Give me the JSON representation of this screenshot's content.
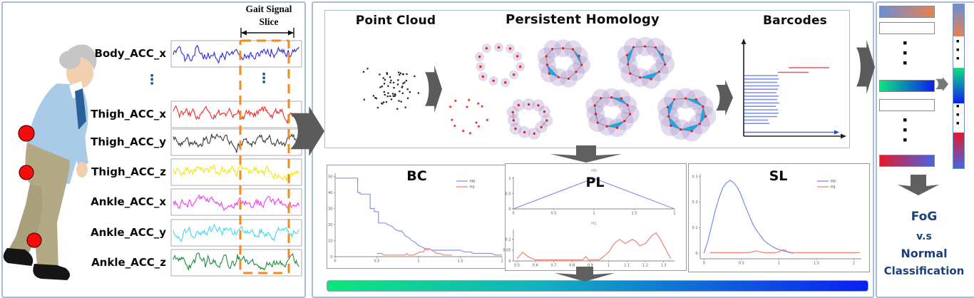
{
  "left_panel": {
    "slice_label": [
      "Gait Signal",
      "Slice"
    ],
    "ellipsis": "⋮",
    "slice_box_color": "#f28a1e",
    "signals": [
      {
        "label": "Body_ACC_x",
        "color": "#2b2bd6"
      },
      {
        "label": "Thigh_ACC_x",
        "color": "#ef2d2d"
      },
      {
        "label": "Thigh_ACC_y",
        "color": "#3a3a3a"
      },
      {
        "label": "Thigh_ACC_z",
        "color": "#f2e713"
      },
      {
        "label": "Ankle_ACC_x",
        "color": "#f23cf2"
      },
      {
        "label": "Ankle_ACC_y",
        "color": "#3fd9ec"
      },
      {
        "label": "Ankle_ACC_z",
        "color": "#1f8b3f"
      }
    ]
  },
  "pipeline": {
    "titles": {
      "point_cloud": "Point Cloud",
      "persistent_homology": "Persistent Homology",
      "barcodes": "Barcodes"
    },
    "h0_color": "#8093e8",
    "h1_color": "#e05a6e"
  },
  "chart_data": [
    {
      "id": "BC",
      "type": "line",
      "title": "BC",
      "xlim": [
        0,
        2
      ],
      "ylim": [
        0,
        52
      ],
      "xticks": [
        0,
        0.5,
        1,
        1.5,
        2
      ],
      "yticks": [
        0,
        10,
        20,
        30,
        40,
        50
      ],
      "legend_position": "top-right",
      "series": [
        {
          "name": "H0",
          "color": "#8892e6",
          "points": [
            [
              0,
              49
            ],
            [
              0.27,
              49
            ],
            [
              0.27,
              40
            ],
            [
              0.3,
              40
            ],
            [
              0.3,
              39
            ],
            [
              0.42,
              39
            ],
            [
              0.42,
              30
            ],
            [
              0.47,
              30
            ],
            [
              0.47,
              28
            ],
            [
              0.52,
              28
            ],
            [
              0.52,
              21
            ],
            [
              0.6,
              21
            ],
            [
              0.63,
              20
            ],
            [
              0.68,
              19
            ],
            [
              0.72,
              17
            ],
            [
              0.76,
              16
            ],
            [
              0.8,
              16
            ],
            [
              0.84,
              13
            ],
            [
              0.88,
              12
            ],
            [
              0.92,
              10
            ],
            [
              0.96,
              9
            ],
            [
              1,
              7
            ],
            [
              1.04,
              6
            ],
            [
              1.08,
              5
            ],
            [
              1.12,
              5
            ],
            [
              1.16,
              4
            ],
            [
              1.3,
              4
            ],
            [
              1.5,
              4
            ],
            [
              1.55,
              3
            ],
            [
              1.62,
              3
            ],
            [
              1.66,
              2
            ],
            [
              1.88,
              2
            ],
            [
              1.92,
              1
            ],
            [
              2,
              1
            ]
          ]
        },
        {
          "name": "H1",
          "color": "#f08272",
          "points": [
            [
              0.5,
              2
            ],
            [
              0.56,
              2
            ],
            [
              0.58,
              1
            ],
            [
              0.84,
              1
            ],
            [
              0.86,
              2
            ],
            [
              0.88,
              1
            ],
            [
              0.94,
              1
            ],
            [
              0.98,
              2
            ],
            [
              1.02,
              3
            ],
            [
              1.06,
              3
            ],
            [
              1.08,
              5
            ],
            [
              1.1,
              4
            ],
            [
              1.13,
              5
            ],
            [
              1.16,
              4
            ],
            [
              1.19,
              3
            ],
            [
              1.22,
              2
            ],
            [
              1.26,
              2
            ],
            [
              1.3,
              1
            ],
            [
              1.4,
              1
            ]
          ]
        }
      ]
    },
    {
      "id": "PL",
      "type": "line",
      "title": "PL",
      "subplots": [
        {
          "name": "H0",
          "color": "#8892e6",
          "xlim": [
            0,
            2
          ],
          "ylim": [
            0,
            1.05
          ],
          "xticks": [
            0,
            0.5,
            1,
            1.5,
            2
          ],
          "yticks": [
            0,
            0.5,
            1
          ],
          "points": [
            [
              0,
              0
            ],
            [
              1,
              1
            ],
            [
              2,
              0
            ]
          ]
        },
        {
          "name": "H1",
          "color": "#f08272",
          "xlim": [
            0.48,
            1.36
          ],
          "ylim": [
            0,
            0.145
          ],
          "xticks": [
            0.5,
            0.6,
            0.7,
            0.8,
            0.9,
            1,
            1.1,
            1.2,
            1.3
          ],
          "yticks": [
            0,
            0.05,
            0.1
          ],
          "points": [
            [
              0.5,
              0.01
            ],
            [
              0.53,
              0.04
            ],
            [
              0.56,
              0.02
            ],
            [
              0.6,
              0.005
            ],
            [
              0.7,
              0.005
            ],
            [
              0.8,
              0.005
            ],
            [
              0.86,
              0.005
            ],
            [
              0.875,
              0.02
            ],
            [
              0.89,
              0.005
            ],
            [
              0.95,
              0.005
            ],
            [
              1,
              0.04
            ],
            [
              1.03,
              0.08
            ],
            [
              1.06,
              0.1
            ],
            [
              1.09,
              0.08
            ],
            [
              1.11,
              0.09
            ],
            [
              1.13,
              0.1
            ],
            [
              1.15,
              0.09
            ],
            [
              1.17,
              0.07
            ],
            [
              1.2,
              0.08
            ],
            [
              1.24,
              0.12
            ],
            [
              1.26,
              0.13
            ],
            [
              1.29,
              0.09
            ],
            [
              1.32,
              0.04
            ],
            [
              1.34,
              0.01
            ]
          ]
        }
      ]
    },
    {
      "id": "SL",
      "type": "line",
      "title": "SL",
      "xlim": [
        -0.05,
        2.1
      ],
      "ylim": [
        -0.022,
        0.31
      ],
      "xticks": [
        0,
        0.5,
        1,
        1.5,
        2
      ],
      "yticks": [
        0,
        0.1,
        0.2,
        0.3
      ],
      "legend_position": "top-right",
      "series": [
        {
          "name": "H0",
          "color": "#7a88e8",
          "points": [
            [
              0,
              0
            ],
            [
              0.05,
              0.045
            ],
            [
              0.1,
              0.105
            ],
            [
              0.15,
              0.165
            ],
            [
              0.2,
              0.215
            ],
            [
              0.25,
              0.255
            ],
            [
              0.3,
              0.275
            ],
            [
              0.35,
              0.285
            ],
            [
              0.4,
              0.275
            ],
            [
              0.45,
              0.255
            ],
            [
              0.5,
              0.225
            ],
            [
              0.55,
              0.185
            ],
            [
              0.6,
              0.15
            ],
            [
              0.65,
              0.115
            ],
            [
              0.7,
              0.09
            ],
            [
              0.75,
              0.07
            ],
            [
              0.8,
              0.05
            ],
            [
              0.85,
              0.038
            ],
            [
              0.9,
              0.028
            ],
            [
              0.95,
              0.02
            ],
            [
              1,
              0.014
            ],
            [
              1.05,
              0.01
            ],
            [
              1.1,
              0.006
            ],
            [
              1.15,
              0.002
            ],
            [
              1.2,
              0
            ]
          ]
        },
        {
          "name": "H1",
          "color": "#f08272",
          "points": [
            [
              0.08,
              0.002
            ],
            [
              0.6,
              0.002
            ],
            [
              0.65,
              0.006
            ],
            [
              0.7,
              0.009
            ],
            [
              0.75,
              0.005
            ],
            [
              0.8,
              0.002
            ],
            [
              0.95,
              0.002
            ],
            [
              1,
              0.005
            ],
            [
              1.05,
              0.013
            ],
            [
              1.08,
              0.012
            ],
            [
              1.12,
              0.005
            ],
            [
              1.18,
              0.002
            ],
            [
              2.08,
              0.002
            ]
          ]
        }
      ]
    }
  ],
  "output": {
    "lines": [
      "FoG",
      "v.s",
      "Normal",
      "Classification"
    ],
    "text_color": "#1d3f7d",
    "gradient_bar": [
      "#0de57d",
      "#13b0c0",
      "#0b1ef2"
    ],
    "vector_bars": {
      "blue_orange": [
        "#6b8ed6",
        "#e8824e"
      ],
      "green_blue": [
        "#0de57d",
        "#0b1ef2"
      ],
      "red_blue": [
        "#e5182b",
        "#4565e2"
      ]
    }
  }
}
